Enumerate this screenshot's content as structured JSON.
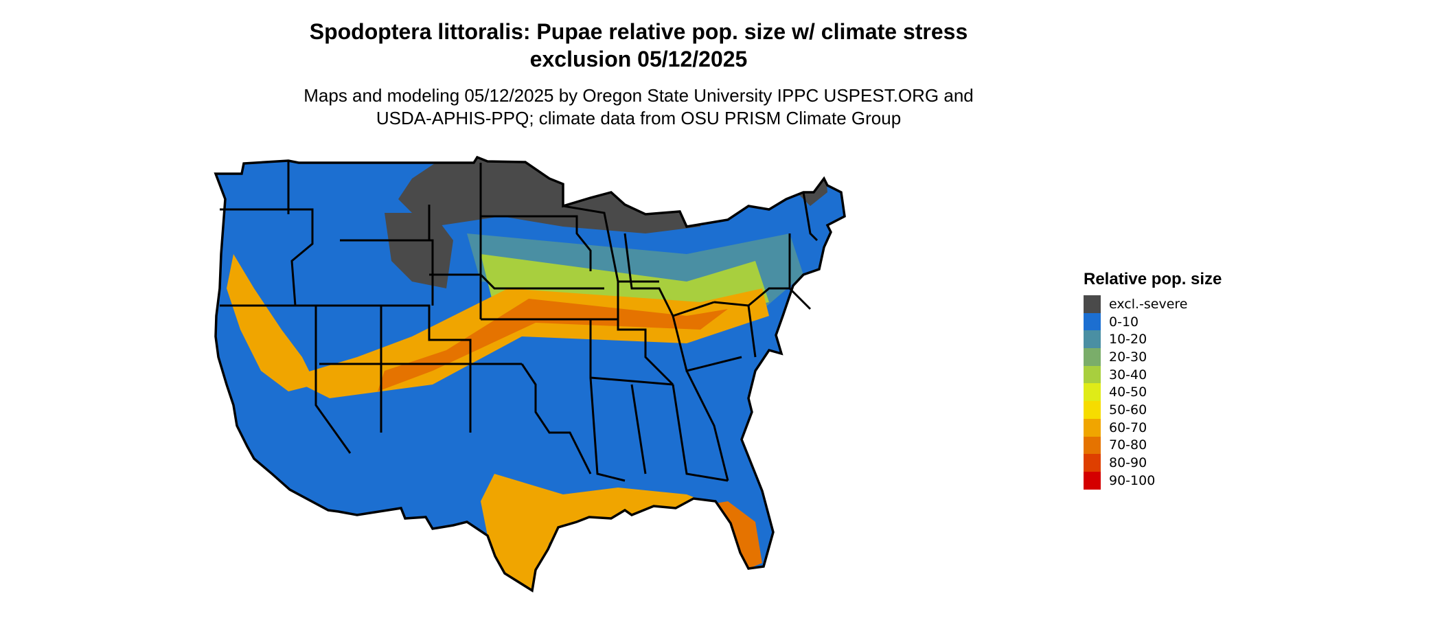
{
  "title_line1": "Spodoptera littoralis: Pupae relative pop. size w/ climate stress",
  "title_line2": "exclusion 05/12/2025",
  "subtitle_line1": "Maps and modeling 05/12/2025 by Oregon State University IPPC USPEST.ORG and",
  "subtitle_line2": "USDA-APHIS-PPQ; climate data from OSU PRISM Climate Group",
  "legend": {
    "title": "Relative pop. size",
    "items": [
      {
        "label": "excl.-severe",
        "color": "#4a4a4a"
      },
      {
        "label": "0-10",
        "color": "#1c6fd1"
      },
      {
        "label": "10-20",
        "color": "#4a8fa3"
      },
      {
        "label": "20-30",
        "color": "#7aad6a"
      },
      {
        "label": "30-40",
        "color": "#a8cf3e"
      },
      {
        "label": "40-50",
        "color": "#dfeb18"
      },
      {
        "label": "50-60",
        "color": "#f6dc00"
      },
      {
        "label": "60-70",
        "color": "#f0a500"
      },
      {
        "label": "70-80",
        "color": "#e57300"
      },
      {
        "label": "80-90",
        "color": "#de3f00"
      },
      {
        "label": "90-100",
        "color": "#d40000"
      }
    ]
  },
  "chart_data": {
    "type": "map",
    "region": "contiguous United States",
    "variable": "Relative pop. size",
    "classes": [
      "excl.-severe",
      "0-10",
      "10-20",
      "20-30",
      "30-40",
      "40-50",
      "50-60",
      "60-70",
      "70-80",
      "80-90",
      "90-100"
    ]
  }
}
